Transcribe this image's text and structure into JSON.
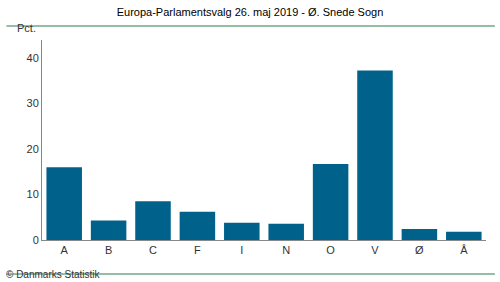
{
  "chart_data": {
    "type": "bar",
    "title": "Europa-Parlamentsvalg 26. maj 2019 - Ø. Snede Sogn",
    "ylabel": "Pct.",
    "categories": [
      "A",
      "B",
      "C",
      "F",
      "I",
      "N",
      "O",
      "V",
      "Ø",
      "Å"
    ],
    "values": [
      16.0,
      4.3,
      8.5,
      6.2,
      3.8,
      3.6,
      16.7,
      37.3,
      2.4,
      1.8
    ],
    "color": "#00628b",
    "ylim": [
      0,
      44
    ],
    "yticks": [
      0,
      10,
      20,
      30,
      40
    ],
    "grid": false,
    "annotations": [
      "© Danmarks Statistik"
    ]
  }
}
